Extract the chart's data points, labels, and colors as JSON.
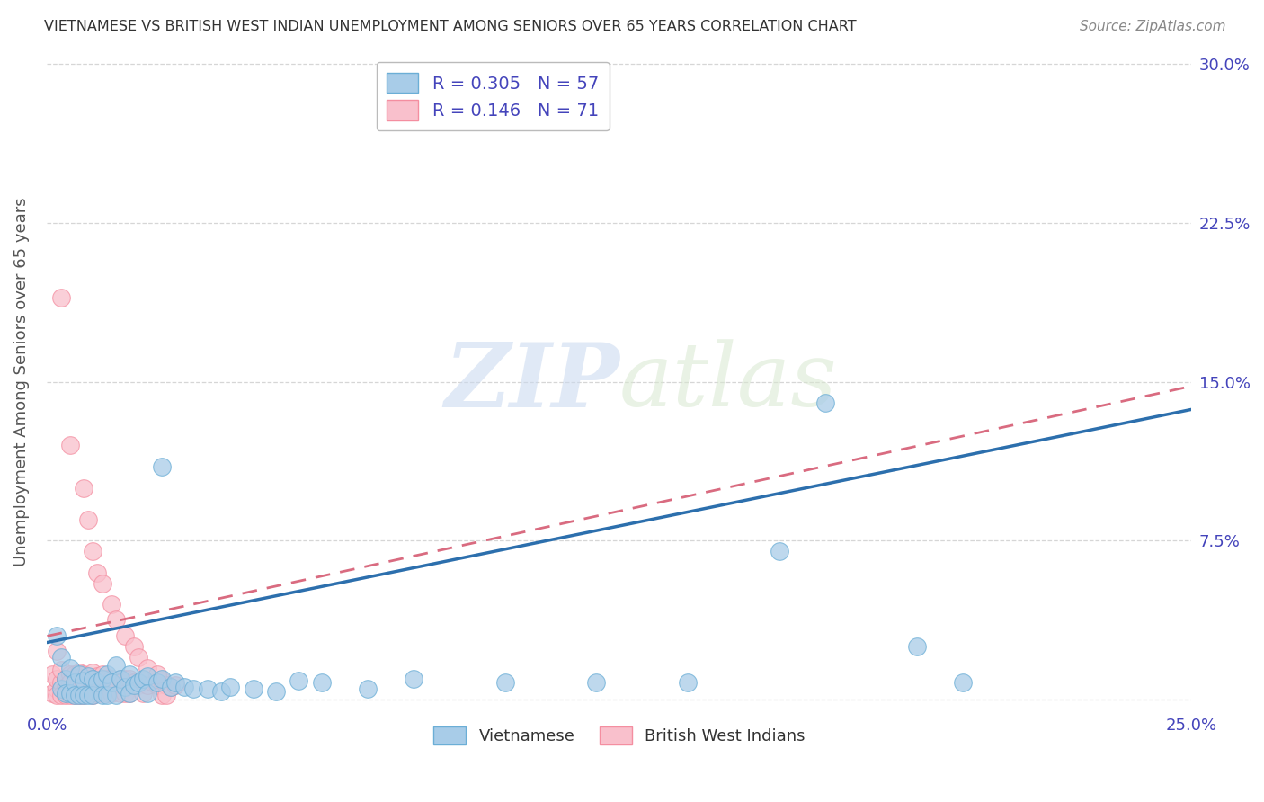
{
  "title": "VIETNAMESE VS BRITISH WEST INDIAN UNEMPLOYMENT AMONG SENIORS OVER 65 YEARS CORRELATION CHART",
  "source": "Source: ZipAtlas.com",
  "ylabel": "Unemployment Among Seniors over 65 years",
  "xlim": [
    0.0,
    0.25
  ],
  "ylim": [
    -0.005,
    0.305
  ],
  "watermark_zip": "ZIP",
  "watermark_atlas": "atlas",
  "legend_R_vietnamese": "0.305",
  "legend_N_vietnamese": "57",
  "legend_R_bwi": "0.146",
  "legend_N_bwi": "71",
  "blue_color": "#a8cce8",
  "blue_edge_color": "#6baed6",
  "pink_color": "#f9c0cc",
  "pink_edge_color": "#f48ea0",
  "blue_line_color": "#2c6fad",
  "pink_line_color": "#d96b80",
  "tick_color": "#4444bb",
  "label_color": "#555555",
  "title_color": "#333333",
  "source_color": "#888888",
  "grid_color": "#cccccc",
  "xtick_vals": [
    0.0,
    0.05,
    0.1,
    0.15,
    0.2,
    0.25
  ],
  "ytick_vals": [
    0.0,
    0.075,
    0.15,
    0.225,
    0.3
  ],
  "blue_scatter_x": [
    0.002,
    0.003,
    0.003,
    0.004,
    0.004,
    0.005,
    0.005,
    0.006,
    0.006,
    0.007,
    0.007,
    0.008,
    0.008,
    0.009,
    0.009,
    0.01,
    0.01,
    0.011,
    0.012,
    0.012,
    0.013,
    0.013,
    0.014,
    0.015,
    0.015,
    0.016,
    0.017,
    0.018,
    0.018,
    0.019,
    0.02,
    0.021,
    0.022,
    0.022,
    0.024,
    0.025,
    0.027,
    0.028,
    0.03,
    0.032,
    0.035,
    0.038,
    0.04,
    0.045,
    0.05,
    0.055,
    0.06,
    0.07,
    0.08,
    0.1,
    0.12,
    0.14,
    0.16,
    0.19,
    0.2,
    0.025,
    0.17
  ],
  "blue_scatter_y": [
    0.03,
    0.005,
    0.02,
    0.01,
    0.003,
    0.015,
    0.003,
    0.008,
    0.002,
    0.012,
    0.002,
    0.009,
    0.002,
    0.011,
    0.002,
    0.01,
    0.002,
    0.008,
    0.01,
    0.002,
    0.012,
    0.002,
    0.008,
    0.016,
    0.002,
    0.01,
    0.006,
    0.012,
    0.003,
    0.007,
    0.008,
    0.01,
    0.011,
    0.003,
    0.008,
    0.01,
    0.006,
    0.008,
    0.006,
    0.005,
    0.005,
    0.004,
    0.006,
    0.005,
    0.004,
    0.009,
    0.008,
    0.005,
    0.01,
    0.008,
    0.008,
    0.008,
    0.07,
    0.025,
    0.008,
    0.11,
    0.14
  ],
  "pink_scatter_x": [
    0.001,
    0.001,
    0.002,
    0.002,
    0.002,
    0.003,
    0.003,
    0.003,
    0.004,
    0.004,
    0.004,
    0.005,
    0.005,
    0.005,
    0.006,
    0.006,
    0.006,
    0.007,
    0.007,
    0.007,
    0.008,
    0.008,
    0.008,
    0.009,
    0.009,
    0.01,
    0.01,
    0.01,
    0.011,
    0.011,
    0.012,
    0.012,
    0.013,
    0.013,
    0.014,
    0.014,
    0.015,
    0.016,
    0.016,
    0.017,
    0.017,
    0.018,
    0.018,
    0.019,
    0.02,
    0.021,
    0.021,
    0.022,
    0.023,
    0.024,
    0.025,
    0.025,
    0.026,
    0.026,
    0.027,
    0.028,
    0.002,
    0.003,
    0.005,
    0.008,
    0.009,
    0.01,
    0.011,
    0.012,
    0.014,
    0.015,
    0.017,
    0.019,
    0.02,
    0.022,
    0.024
  ],
  "pink_scatter_y": [
    0.003,
    0.012,
    0.005,
    0.01,
    0.002,
    0.008,
    0.014,
    0.002,
    0.01,
    0.006,
    0.002,
    0.012,
    0.008,
    0.002,
    0.012,
    0.007,
    0.002,
    0.013,
    0.008,
    0.002,
    0.012,
    0.007,
    0.002,
    0.01,
    0.003,
    0.013,
    0.008,
    0.002,
    0.011,
    0.003,
    0.012,
    0.003,
    0.01,
    0.003,
    0.01,
    0.003,
    0.008,
    0.01,
    0.003,
    0.01,
    0.003,
    0.01,
    0.003,
    0.008,
    0.007,
    0.009,
    0.003,
    0.007,
    0.008,
    0.007,
    0.009,
    0.002,
    0.007,
    0.002,
    0.006,
    0.007,
    0.023,
    0.19,
    0.12,
    0.1,
    0.085,
    0.07,
    0.06,
    0.055,
    0.045,
    0.038,
    0.03,
    0.025,
    0.02,
    0.015,
    0.012
  ],
  "blue_trend_x": [
    0.0,
    0.25
  ],
  "blue_trend_y": [
    0.027,
    0.137
  ],
  "pink_trend_x": [
    0.0,
    0.25
  ],
  "pink_trend_y": [
    0.03,
    0.148
  ]
}
